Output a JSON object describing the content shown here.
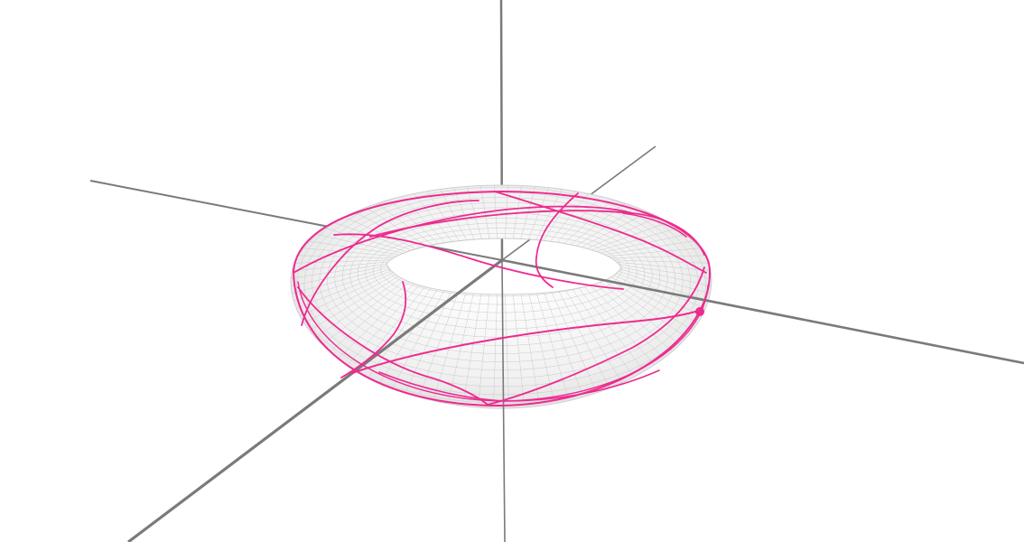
{
  "scene": {
    "background_color": "#ffffff",
    "axis_color": "#7a7a7a",
    "torus_fill_color": "#f3f3f3",
    "torus_mesh_color": "#c9c9c9",
    "curve_color": "#ee2a8f",
    "curve_point_color": "#ee2a8f"
  }
}
